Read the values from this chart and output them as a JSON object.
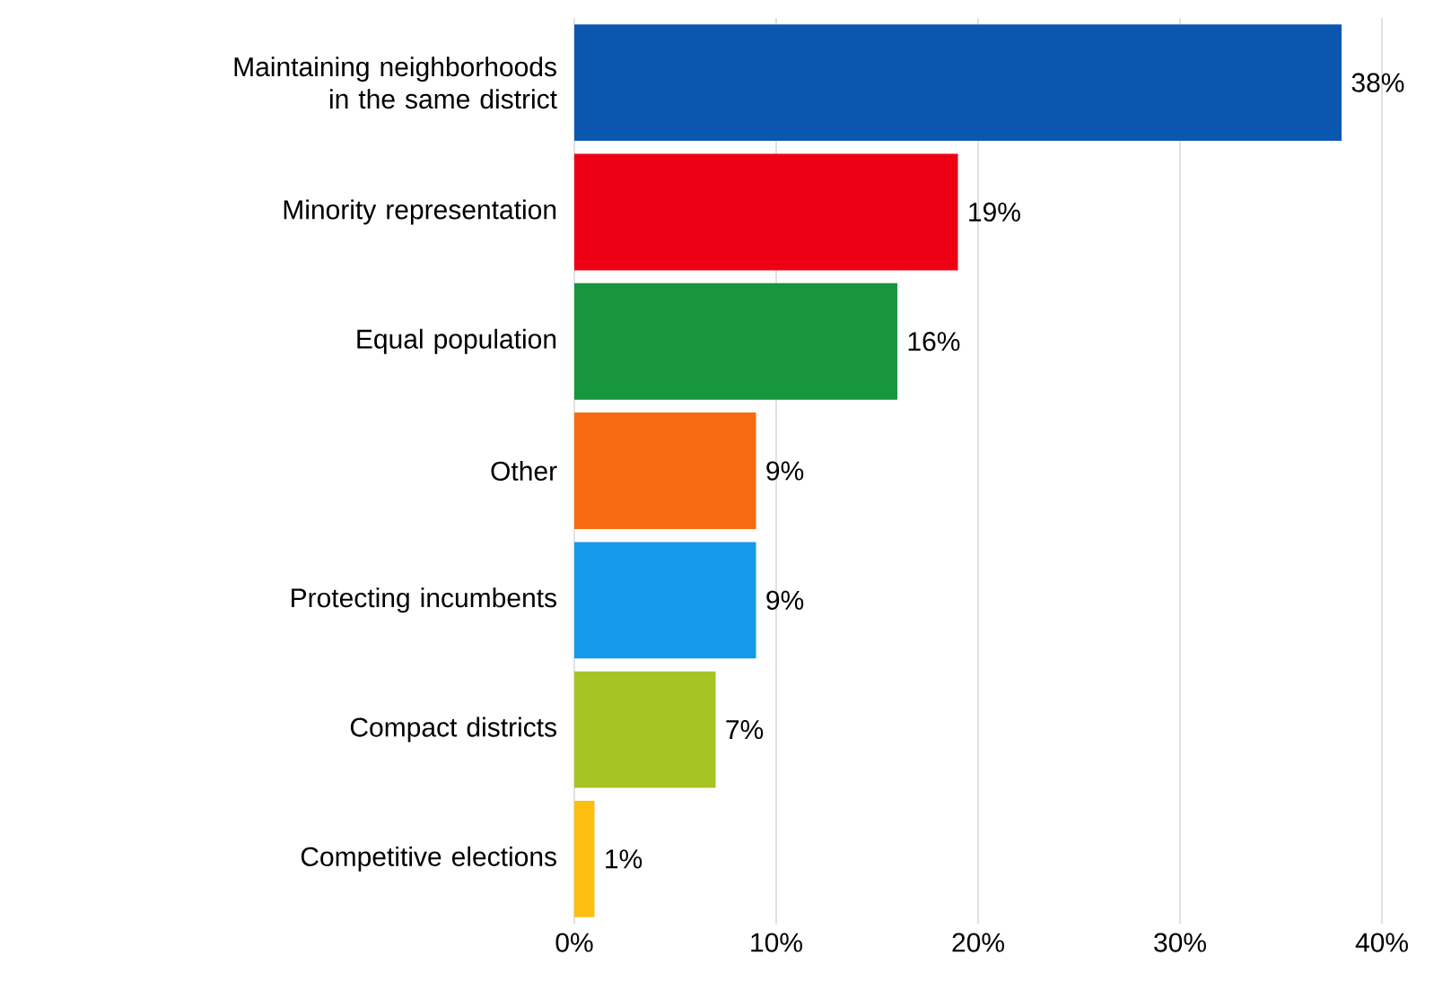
{
  "chart_data": {
    "type": "bar",
    "orientation": "horizontal",
    "categories": [
      "Maintaining neighborhoods in the same district",
      "Minority representation",
      "Equal population",
      "Other",
      "Protecting incumbents",
      "Compact districts",
      "Competitive elections"
    ],
    "values": [
      38,
      19,
      16,
      9,
      9,
      7,
      1
    ],
    "value_labels": [
      "38%",
      "19%",
      "16%",
      "9%",
      "9%",
      "7%",
      "1%"
    ],
    "colors": [
      "#0b57b0",
      "#ee0014",
      "#17963e",
      "#f86a10",
      "#159aeb",
      "#a6c524",
      "#fdbf0f"
    ],
    "xlim": [
      0,
      40
    ],
    "xticks": [
      {
        "value": 0,
        "label": "0%"
      },
      {
        "value": 10,
        "label": "10%"
      },
      {
        "value": 20,
        "label": "20%"
      },
      {
        "value": 30,
        "label": "30%"
      },
      {
        "value": 40,
        "label": "40%"
      }
    ],
    "grid": "x"
  }
}
